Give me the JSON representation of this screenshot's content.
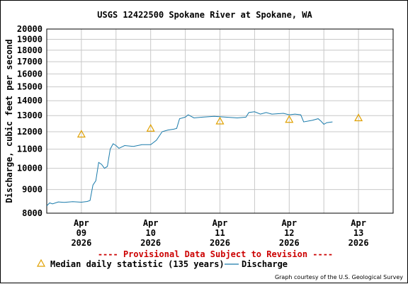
{
  "title": "USGS 12422500 Spokane River at Spokane, WA",
  "provisional_notice": "---- Provisional Data Subject to Revision ----",
  "credit": "Graph courtesy of the U.S. Geological Survey",
  "colors": {
    "discharge": "#1a7bab",
    "median": "#e0a000",
    "grid": "#c8c8c8",
    "provisional": "#cc0000"
  },
  "legend": {
    "median_label": "Median daily statistic (135 years)",
    "discharge_label": "Discharge"
  },
  "chart_data": {
    "type": "line",
    "title": "USGS 12422500 Spokane River at Spokane, WA",
    "ylabel": "Discharge, cubic feet per second",
    "xlabel": "",
    "yscale": "log",
    "ylim": [
      8000,
      20000
    ],
    "y_ticks": [
      8000,
      9000,
      10000,
      11000,
      12000,
      13000,
      14000,
      15000,
      16000,
      17000,
      18000,
      19000,
      20000
    ],
    "xlim": [
      "2026-04-08 12:00",
      "2026-04-13 12:00"
    ],
    "x_ticks": [
      {
        "month": "Apr",
        "day": "09",
        "year": "2026",
        "date": "2026-04-09"
      },
      {
        "month": "Apr",
        "day": "10",
        "year": "2026",
        "date": "2026-04-10"
      },
      {
        "month": "Apr",
        "day": "11",
        "year": "2026",
        "date": "2026-04-11"
      },
      {
        "month": "Apr",
        "day": "12",
        "year": "2026",
        "date": "2026-04-12"
      },
      {
        "month": "Apr",
        "day": "13",
        "year": "2026",
        "date": "2026-04-13"
      }
    ],
    "grid": true,
    "legend_position": "bottom",
    "series": [
      {
        "name": "Discharge",
        "style": "line",
        "points": [
          [
            "2026-04-08 12:00",
            8300
          ],
          [
            "2026-04-08 13:00",
            8420
          ],
          [
            "2026-04-08 14:00",
            8380
          ],
          [
            "2026-04-08 16:00",
            8460
          ],
          [
            "2026-04-08 18:00",
            8440
          ],
          [
            "2026-04-08 21:00",
            8470
          ],
          [
            "2026-04-09 00:00",
            8450
          ],
          [
            "2026-04-09 02:00",
            8480
          ],
          [
            "2026-04-09 03:00",
            8520
          ],
          [
            "2026-04-09 04:00",
            9200
          ],
          [
            "2026-04-09 05:00",
            9400
          ],
          [
            "2026-04-09 06:00",
            10300
          ],
          [
            "2026-04-09 07:00",
            10200
          ],
          [
            "2026-04-09 08:00",
            10000
          ],
          [
            "2026-04-09 09:00",
            10100
          ],
          [
            "2026-04-09 10:00",
            11000
          ],
          [
            "2026-04-09 11:00",
            11300
          ],
          [
            "2026-04-09 12:00",
            11200
          ],
          [
            "2026-04-09 13:00",
            11050
          ],
          [
            "2026-04-09 15:00",
            11200
          ],
          [
            "2026-04-09 18:00",
            11150
          ],
          [
            "2026-04-09 21:00",
            11250
          ],
          [
            "2026-04-10 00:00",
            11250
          ],
          [
            "2026-04-10 02:00",
            11500
          ],
          [
            "2026-04-10 04:00",
            12000
          ],
          [
            "2026-04-10 06:00",
            12100
          ],
          [
            "2026-04-10 08:00",
            12150
          ],
          [
            "2026-04-10 09:00",
            12200
          ],
          [
            "2026-04-10 10:00",
            12800
          ],
          [
            "2026-04-10 12:00",
            12900
          ],
          [
            "2026-04-10 13:00",
            13050
          ],
          [
            "2026-04-10 15:00",
            12850
          ],
          [
            "2026-04-10 18:00",
            12900
          ],
          [
            "2026-04-10 22:00",
            12950
          ],
          [
            "2026-04-11 02:00",
            12900
          ],
          [
            "2026-04-11 06:00",
            12850
          ],
          [
            "2026-04-11 09:00",
            12900
          ],
          [
            "2026-04-11 10:00",
            13200
          ],
          [
            "2026-04-11 12:00",
            13250
          ],
          [
            "2026-04-11 14:00",
            13100
          ],
          [
            "2026-04-11 16:00",
            13200
          ],
          [
            "2026-04-11 18:00",
            13100
          ],
          [
            "2026-04-11 22:00",
            13150
          ],
          [
            "2026-04-12 00:00",
            13050
          ],
          [
            "2026-04-12 02:00",
            13100
          ],
          [
            "2026-04-12 04:00",
            13050
          ],
          [
            "2026-04-12 05:00",
            12600
          ],
          [
            "2026-04-12 08:00",
            12700
          ],
          [
            "2026-04-12 10:00",
            12800
          ],
          [
            "2026-04-12 11:00",
            12650
          ],
          [
            "2026-04-12 12:00",
            12450
          ],
          [
            "2026-04-12 13:00",
            12550
          ],
          [
            "2026-04-12 15:00",
            12600
          ]
        ]
      },
      {
        "name": "Median daily statistic (135 years)",
        "style": "marker-triangle",
        "points": [
          [
            "2026-04-09",
            11850
          ],
          [
            "2026-04-10",
            12200
          ],
          [
            "2026-04-11",
            12650
          ],
          [
            "2026-04-12",
            12750
          ],
          [
            "2026-04-13",
            12850
          ]
        ]
      }
    ]
  }
}
